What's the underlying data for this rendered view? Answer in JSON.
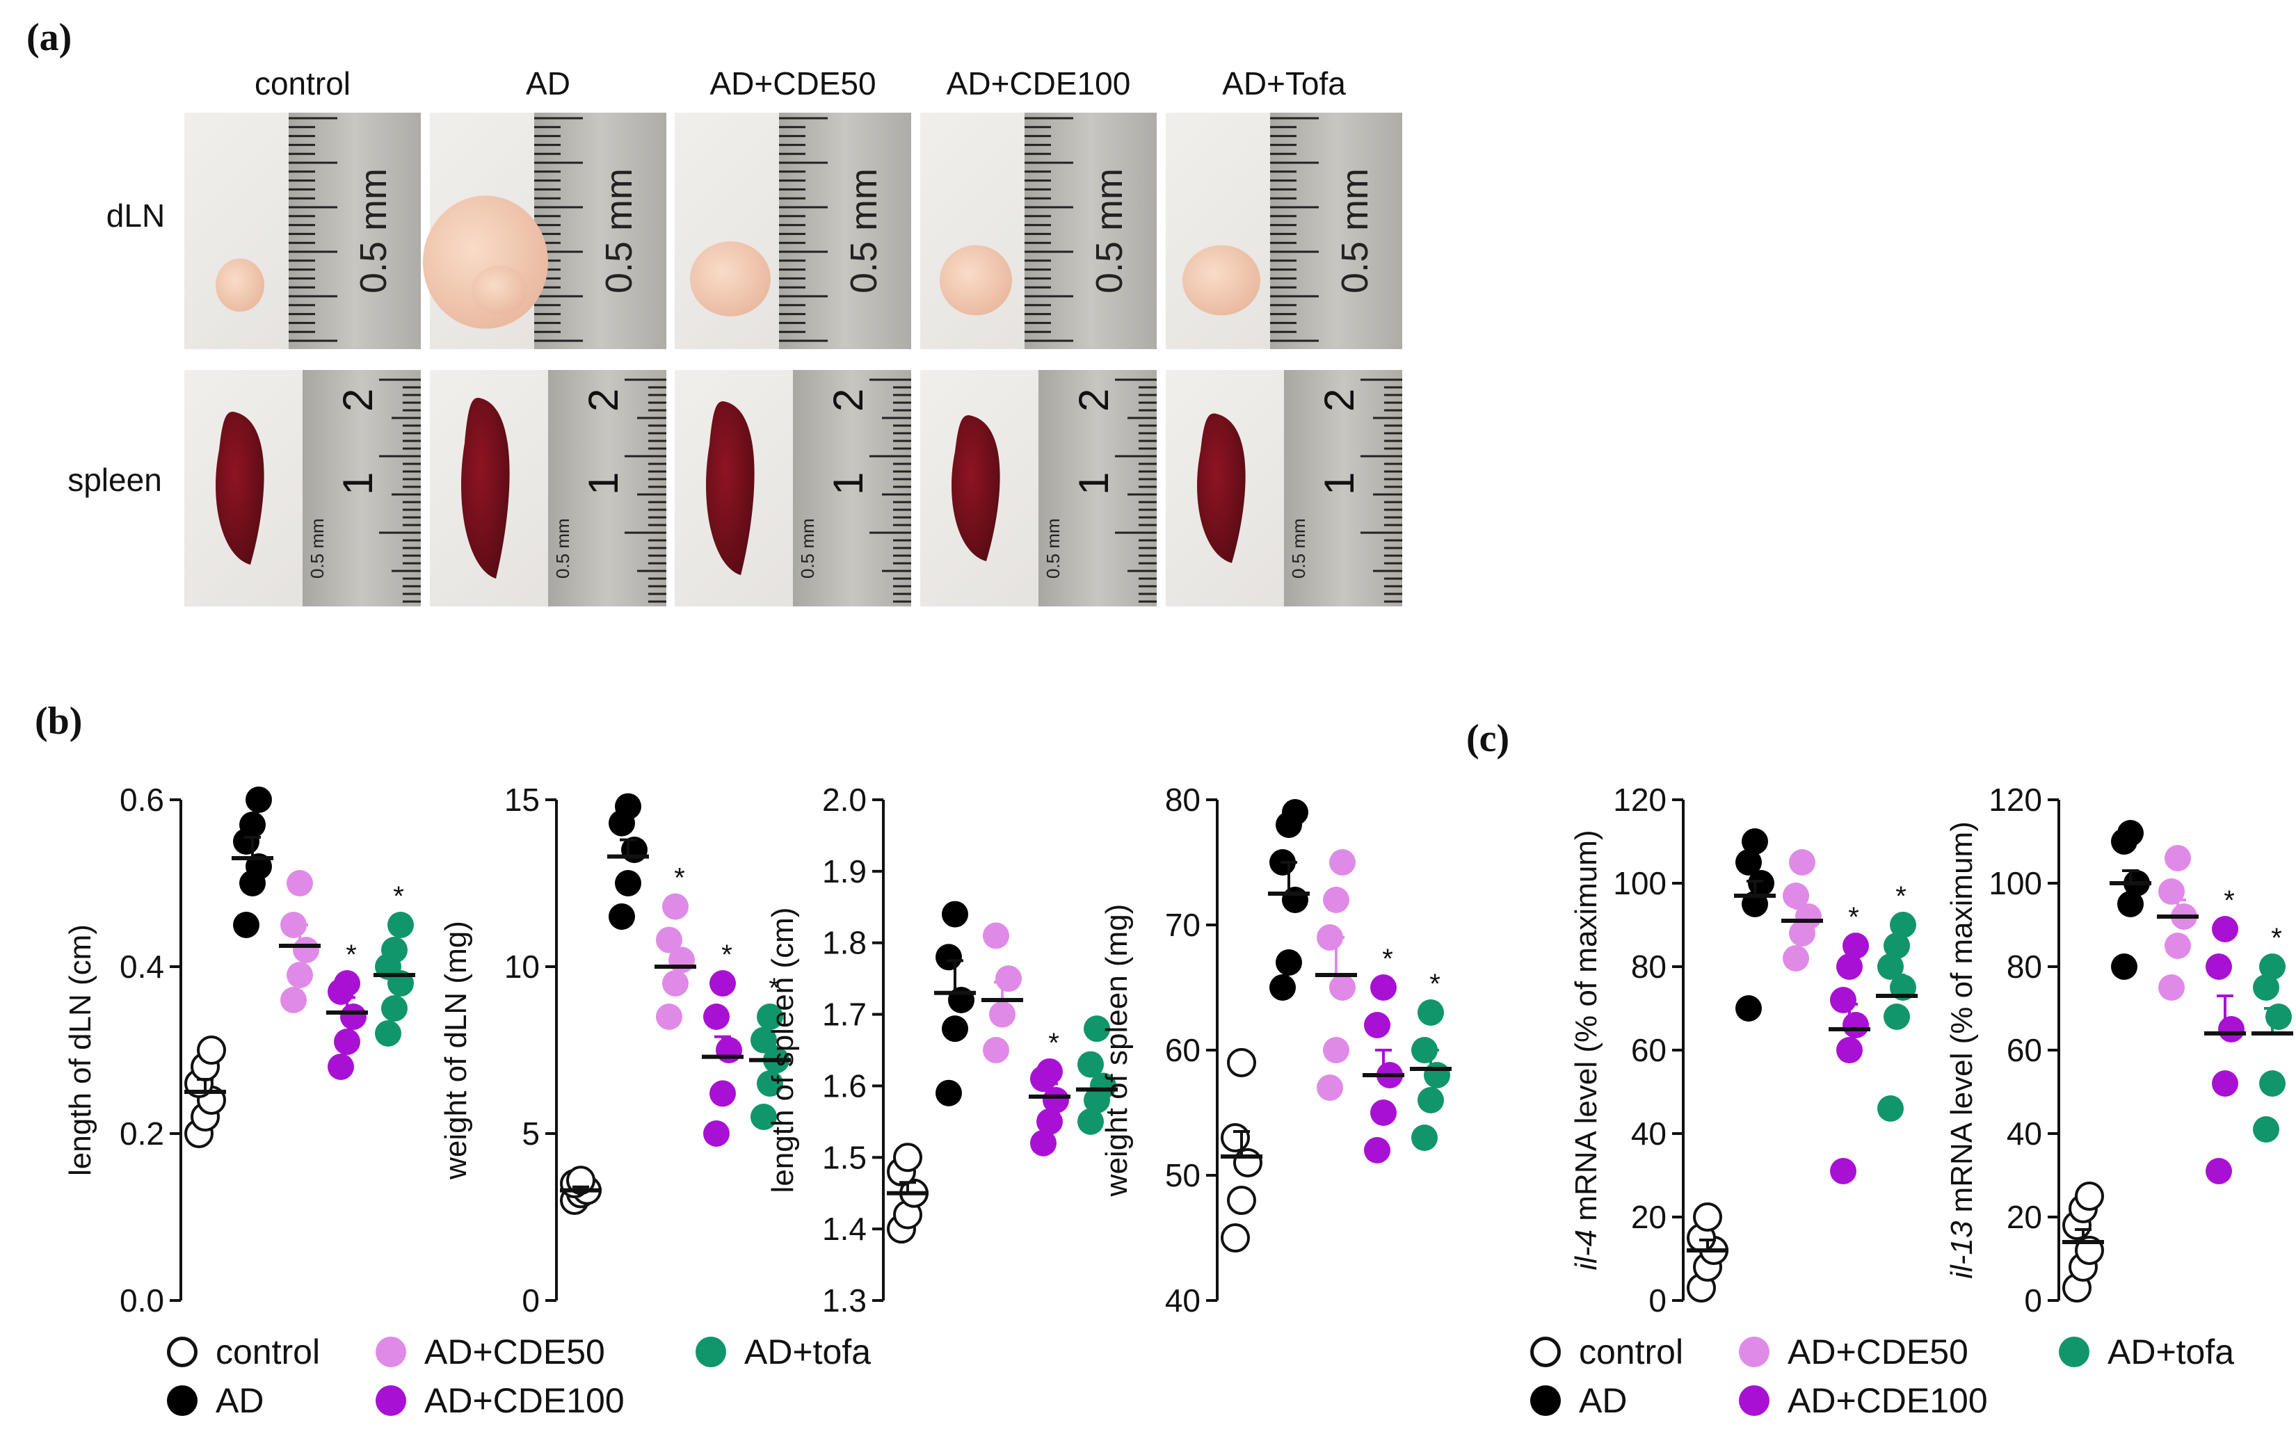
{
  "panels": {
    "a": "(a)",
    "b": "(b)",
    "c": "(c)"
  },
  "photo_grid": {
    "columns": [
      "control",
      "AD",
      "AD+CDE50",
      "AD+CDE100",
      "AD+Tofa"
    ],
    "rows": [
      "dLN",
      "spleen"
    ],
    "ruler_dln_label": "0.5 mm",
    "ruler_spleen_label": "0.5 mm",
    "ruler_spleen_numbers": [
      "1",
      "2"
    ]
  },
  "colors": {
    "control": "#ffffff",
    "AD": "#000000",
    "AD+CDE50": "#e08ae8",
    "AD+CDE100": "#a811d4",
    "AD+tofa": "#10966a"
  },
  "legend_b": {
    "control": "control",
    "AD": "AD",
    "cde50": "AD+CDE50",
    "cde100": "AD+CDE100",
    "tofa": "AD+tofa"
  },
  "legend_c": {
    "control": "control",
    "AD": "AD",
    "cde50": "AD+CDE50",
    "cde100": "AD+CDE100",
    "tofa": "AD+tofa"
  },
  "chart_data": [
    {
      "type": "scatter",
      "id": "length-dln",
      "ylabel": "length of dLN (cm)",
      "ylim": [
        0.0,
        0.6
      ],
      "yticks": [
        "0.0",
        "0.2",
        "0.4",
        "0.6"
      ],
      "yticks_values": [
        0.0,
        0.2,
        0.4,
        0.6
      ],
      "groups": [
        "control",
        "AD",
        "AD+CDE50",
        "AD+CDE100",
        "AD+tofa"
      ],
      "points": [
        [
          0.2,
          0.22,
          0.24,
          0.26,
          0.28,
          0.3
        ],
        [
          0.45,
          0.5,
          0.52,
          0.55,
          0.57,
          0.6
        ],
        [
          0.36,
          0.39,
          0.42,
          0.45,
          0.5
        ],
        [
          0.28,
          0.31,
          0.34,
          0.37,
          0.38
        ],
        [
          0.32,
          0.35,
          0.38,
          0.4,
          0.42,
          0.45
        ]
      ],
      "means": [
        0.25,
        0.53,
        0.425,
        0.345,
        0.39
      ],
      "sem": [
        0.015,
        0.025,
        0.025,
        0.018,
        0.02
      ],
      "significance": [
        "",
        "",
        "",
        "*",
        "*"
      ]
    },
    {
      "type": "scatter",
      "id": "weight-dln",
      "ylabel": "weight of dLN (mg)",
      "ylim": [
        0,
        15
      ],
      "yticks": [
        "0",
        "5",
        "10",
        "15"
      ],
      "yticks_values": [
        0,
        5,
        10,
        15
      ],
      "groups": [
        "control",
        "AD",
        "AD+CDE50",
        "AD+CDE100",
        "AD+tofa"
      ],
      "points": [
        [
          3.0,
          3.2,
          3.3,
          3.5,
          3.6
        ],
        [
          11.5,
          12.5,
          13.5,
          14.3,
          14.8
        ],
        [
          8.5,
          9.5,
          10.2,
          10.8,
          11.8
        ],
        [
          5.0,
          6.2,
          7.5,
          8.5,
          9.5
        ],
        [
          5.5,
          6.5,
          7.2,
          7.8,
          8.5
        ]
      ],
      "means": [
        3.3,
        13.3,
        10.0,
        7.3,
        7.2
      ],
      "sem": [
        0.1,
        0.5,
        0.5,
        0.6,
        0.4
      ],
      "significance": [
        "",
        "",
        "*",
        "*",
        "*"
      ]
    },
    {
      "type": "scatter",
      "id": "length-spleen",
      "ylabel": "length of spleen (cm)",
      "ylim": [
        1.3,
        2.0
      ],
      "yticks": [
        "1.3",
        "1.4",
        "1.5",
        "1.6",
        "1.7",
        "1.8",
        "1.9",
        "2.0"
      ],
      "yticks_values": [
        1.3,
        1.4,
        1.5,
        1.6,
        1.7,
        1.8,
        1.9,
        2.0
      ],
      "groups": [
        "control",
        "AD",
        "AD+CDE50",
        "AD+CDE100",
        "AD+tofa"
      ],
      "points": [
        [
          1.4,
          1.42,
          1.45,
          1.48,
          1.5
        ],
        [
          1.59,
          1.68,
          1.72,
          1.78,
          1.84
        ],
        [
          1.65,
          1.7,
          1.75,
          1.81
        ],
        [
          1.52,
          1.55,
          1.58,
          1.61,
          1.62
        ],
        [
          1.55,
          1.58,
          1.6,
          1.63,
          1.68
        ]
      ],
      "means": [
        1.45,
        1.73,
        1.72,
        1.585,
        1.595
      ],
      "sem": [
        0.015,
        0.045,
        0.025,
        0.018,
        0.02
      ],
      "significance": [
        "",
        "",
        "",
        "*",
        ""
      ]
    },
    {
      "type": "scatter",
      "id": "weight-spleen",
      "ylabel": "weight of spleen (mg)",
      "ylim": [
        40,
        80
      ],
      "yticks": [
        "40",
        "50",
        "60",
        "70",
        "80"
      ],
      "yticks_values": [
        40,
        50,
        60,
        70,
        80
      ],
      "groups": [
        "control",
        "AD",
        "AD+CDE50",
        "AD+CDE100",
        "AD+tofa"
      ],
      "points": [
        [
          45,
          48,
          51,
          53,
          59
        ],
        [
          65,
          67,
          72,
          75,
          78,
          79
        ],
        [
          57,
          60,
          65,
          69,
          72,
          75
        ],
        [
          52,
          55,
          58,
          62,
          65
        ],
        [
          53,
          56,
          58,
          60,
          63
        ]
      ],
      "means": [
        51.5,
        72.5,
        66.0,
        58.0,
        58.5
      ],
      "sem": [
        2.0,
        2.5,
        3.0,
        2.0,
        1.5
      ],
      "significance": [
        "",
        "",
        "",
        "*",
        "*"
      ]
    },
    {
      "type": "scatter",
      "id": "il4-mrna",
      "ylabel_prefix": "il-4",
      "ylabel": " mRNA level (% of maximum)",
      "ylim": [
        0,
        120
      ],
      "yticks": [
        "0",
        "20",
        "40",
        "60",
        "80",
        "100",
        "120"
      ],
      "yticks_values": [
        0,
        20,
        40,
        60,
        80,
        100,
        120
      ],
      "groups": [
        "control",
        "AD",
        "AD+CDE50",
        "AD+CDE100",
        "AD+tofa"
      ],
      "points": [
        [
          3,
          8,
          12,
          15,
          20
        ],
        [
          70,
          95,
          100,
          105,
          110
        ],
        [
          82,
          88,
          92,
          97,
          105
        ],
        [
          31,
          60,
          66,
          72,
          80,
          85
        ],
        [
          46,
          68,
          75,
          80,
          85,
          90
        ]
      ],
      "means": [
        12,
        97,
        91,
        65,
        73
      ],
      "sem": [
        2.5,
        3.5,
        3.0,
        6.0,
        5.0
      ],
      "significance": [
        "",
        "",
        "",
        "*",
        "*"
      ]
    },
    {
      "type": "scatter",
      "id": "il13-mrna",
      "ylabel_prefix": "il-13",
      "ylabel": " mRNA level (% of maximum)",
      "ylim": [
        0,
        120
      ],
      "yticks": [
        "0",
        "20",
        "40",
        "60",
        "80",
        "100",
        "120"
      ],
      "yticks_values": [
        0,
        20,
        40,
        60,
        80,
        100,
        120
      ],
      "groups": [
        "control",
        "AD",
        "AD+CDE50",
        "AD+CDE100",
        "AD+tofa"
      ],
      "points": [
        [
          3,
          8,
          12,
          18,
          22,
          25
        ],
        [
          80,
          95,
          100,
          110,
          112
        ],
        [
          75,
          85,
          92,
          98,
          106
        ],
        [
          31,
          52,
          65,
          80,
          89
        ],
        [
          41,
          52,
          68,
          75,
          80
        ]
      ],
      "means": [
        14,
        100,
        92,
        64,
        64
      ],
      "sem": [
        3.0,
        3.0,
        4.0,
        9.0,
        6.0
      ],
      "significance": [
        "",
        "",
        "",
        "*",
        "*"
      ]
    }
  ]
}
